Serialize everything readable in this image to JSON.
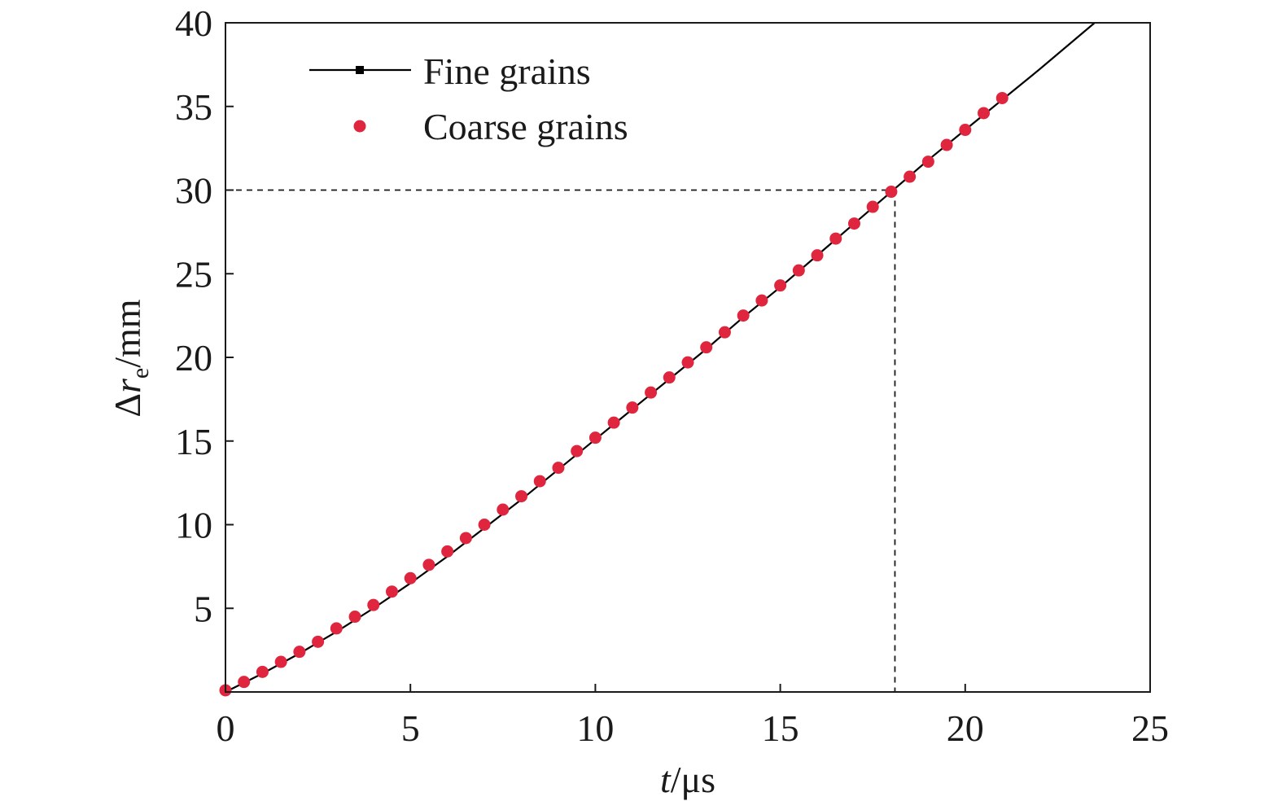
{
  "chart_data": {
    "type": "line",
    "xlabel": {
      "italic": "t",
      "rest": "/μs"
    },
    "ylabel": {
      "delta": "Δ",
      "italic": "r",
      "sub": "e",
      "rest": "/mm"
    },
    "xlim": [
      0,
      25
    ],
    "ylim": [
      0,
      40
    ],
    "xticks": [
      0,
      5,
      10,
      15,
      20,
      25
    ],
    "yticks": [
      5,
      10,
      15,
      20,
      25,
      30,
      35,
      40
    ],
    "grid": false,
    "legend_position": "top-left",
    "series": [
      {
        "name": "Fine grains",
        "style": "line",
        "color": "#000000",
        "x": [
          0,
          1,
          2,
          3,
          4,
          5,
          6,
          7,
          8,
          9,
          10,
          11,
          12,
          13,
          14,
          15,
          16,
          17,
          18,
          19,
          20,
          21,
          22,
          23.5
        ],
        "y": [
          0.0,
          1.1,
          2.3,
          3.6,
          5.0,
          6.5,
          8.1,
          9.8,
          11.5,
          13.3,
          15.1,
          16.9,
          18.7,
          20.5,
          22.4,
          24.2,
          26.1,
          28.0,
          29.9,
          31.8,
          33.6,
          35.4,
          37.2,
          40.0
        ]
      },
      {
        "name": "Coarse grains",
        "style": "markers",
        "color": "#e0263f",
        "x": [
          0,
          0.5,
          1,
          1.5,
          2,
          2.5,
          3,
          3.5,
          4,
          4.5,
          5,
          5.5,
          6,
          6.5,
          7,
          7.5,
          8,
          8.5,
          9,
          9.5,
          10,
          10.5,
          11,
          11.5,
          12,
          12.5,
          13,
          13.5,
          14,
          14.5,
          15,
          15.5,
          16,
          16.5,
          17,
          17.5,
          18,
          18.5,
          19,
          19.5,
          20,
          20.5,
          21
        ],
        "y": [
          0.1,
          0.6,
          1.2,
          1.8,
          2.4,
          3.0,
          3.8,
          4.5,
          5.2,
          6.0,
          6.8,
          7.6,
          8.4,
          9.2,
          10.0,
          10.9,
          11.7,
          12.6,
          13.4,
          14.4,
          15.2,
          16.1,
          17.0,
          17.9,
          18.8,
          19.7,
          20.6,
          21.5,
          22.5,
          23.4,
          24.3,
          25.2,
          26.1,
          27.1,
          28.0,
          29.0,
          29.9,
          30.8,
          31.7,
          32.7,
          33.6,
          34.6,
          35.5
        ]
      }
    ],
    "annotations": {
      "dashed_guide": {
        "x": 18.1,
        "y": 30
      }
    }
  }
}
